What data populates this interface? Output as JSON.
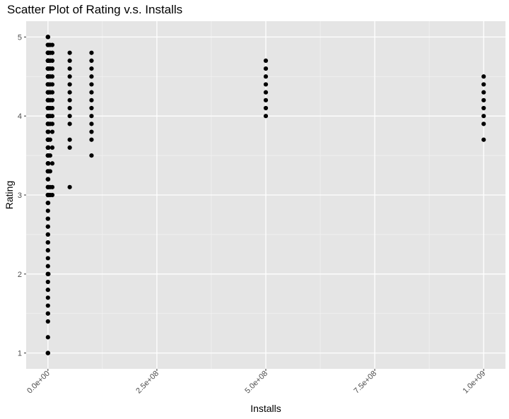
{
  "chart_data": {
    "type": "scatter",
    "title": "Scatter Plot of Rating v.s. Installs",
    "xlabel": "Installs",
    "ylabel": "Rating",
    "xlim": [
      -50000000,
      1050000000
    ],
    "ylim": [
      0.8,
      5.2
    ],
    "x_ticks": [
      {
        "value": 0,
        "label": "0.0e+00"
      },
      {
        "value": 250000000,
        "label": "2.5e+08"
      },
      {
        "value": 500000000,
        "label": "5.0e+08"
      },
      {
        "value": 750000000,
        "label": "7.5e+08"
      },
      {
        "value": 1000000000,
        "label": "1.0e+09"
      }
    ],
    "y_ticks": [
      {
        "value": 1,
        "label": "1"
      },
      {
        "value": 2,
        "label": "2"
      },
      {
        "value": 3,
        "label": "3"
      },
      {
        "value": 4,
        "label": "4"
      },
      {
        "value": 5,
        "label": "5"
      }
    ],
    "grid": true,
    "legend": "none",
    "point_color": "#000000",
    "panel_background": "#e5e5e5",
    "groups": [
      {
        "x": 0,
        "y": [
          1.0,
          1.2,
          1.4,
          1.5,
          1.6,
          1.7,
          1.8,
          1.9,
          2.0,
          2.1,
          2.2,
          2.3,
          2.4,
          2.5,
          2.6,
          2.7,
          2.8,
          2.9,
          3.0,
          3.1,
          3.2,
          3.3,
          3.4,
          3.5,
          3.6,
          3.7,
          3.8,
          3.9,
          4.0,
          4.1,
          4.2,
          4.3,
          4.4,
          4.5,
          4.6,
          4.7,
          4.8,
          4.9,
          5.0
        ]
      },
      {
        "x": 1000,
        "y": [
          1.0,
          1.8,
          2.0,
          2.3,
          2.5,
          2.7,
          3.0,
          3.3,
          3.5,
          3.7,
          3.9,
          4.0,
          4.1,
          4.3,
          4.4,
          4.5,
          4.7,
          4.8,
          5.0
        ]
      },
      {
        "x": 5000,
        "y": [
          1.0,
          1.5,
          2.0,
          2.4,
          2.7,
          3.0,
          3.2,
          3.4,
          3.6,
          3.8,
          4.0,
          4.2,
          4.4,
          4.6,
          4.8,
          5.0
        ]
      },
      {
        "x": 10000,
        "y": [
          1.0,
          2.0,
          2.6,
          2.9,
          3.1,
          3.3,
          3.5,
          3.7,
          3.9,
          4.0,
          4.1,
          4.2,
          4.3,
          4.4,
          4.5,
          4.6,
          4.7,
          4.8,
          4.9,
          5.0
        ]
      },
      {
        "x": 50000,
        "y": [
          2.9,
          3.0,
          3.2,
          3.4,
          3.6,
          3.8,
          3.9,
          4.0,
          4.1,
          4.2,
          4.3,
          4.4,
          4.5,
          4.6,
          4.7,
          4.8,
          4.9,
          5.0
        ]
      },
      {
        "x": 100000,
        "y": [
          2.0,
          3.0,
          3.1,
          3.3,
          3.5,
          3.7,
          3.8,
          3.9,
          4.0,
          4.1,
          4.2,
          4.3,
          4.4,
          4.5,
          4.6,
          4.7,
          4.8,
          4.9,
          5.0
        ]
      },
      {
        "x": 500000,
        "y": [
          2.9,
          3.0,
          3.2,
          3.4,
          3.6,
          3.8,
          3.9,
          4.0,
          4.1,
          4.2,
          4.3,
          4.4,
          4.5,
          4.6,
          4.7,
          4.8,
          4.9
        ]
      },
      {
        "x": 1000000,
        "y": [
          2.0,
          3.0,
          3.1,
          3.3,
          3.4,
          3.5,
          3.6,
          3.7,
          3.8,
          3.9,
          4.0,
          4.1,
          4.2,
          4.3,
          4.4,
          4.5,
          4.6,
          4.7,
          4.8,
          4.9
        ]
      },
      {
        "x": 5000000,
        "y": [
          3.0,
          3.1,
          3.3,
          3.5,
          3.7,
          3.9,
          4.0,
          4.1,
          4.2,
          4.3,
          4.4,
          4.5,
          4.6,
          4.7,
          4.8,
          4.9
        ]
      },
      {
        "x": 10000000,
        "y": [
          3.0,
          3.1,
          3.4,
          3.6,
          3.8,
          3.9,
          4.0,
          4.1,
          4.2,
          4.3,
          4.4,
          4.5,
          4.6,
          4.7,
          4.8,
          4.9
        ]
      },
      {
        "x": 50000000,
        "y": [
          3.1,
          3.6,
          3.7,
          3.9,
          4.0,
          4.1,
          4.2,
          4.3,
          4.4,
          4.5,
          4.6,
          4.7,
          4.8
        ]
      },
      {
        "x": 100000000,
        "y": [
          3.5,
          3.7,
          3.8,
          3.9,
          4.0,
          4.1,
          4.2,
          4.3,
          4.4,
          4.5,
          4.6,
          4.7,
          4.8
        ]
      },
      {
        "x": 500000000,
        "y": [
          4.0,
          4.1,
          4.2,
          4.3,
          4.4,
          4.5,
          4.6,
          4.7
        ]
      },
      {
        "x": 1000000000,
        "y": [
          3.7,
          3.9,
          4.0,
          4.1,
          4.2,
          4.3,
          4.4,
          4.5
        ]
      }
    ]
  }
}
